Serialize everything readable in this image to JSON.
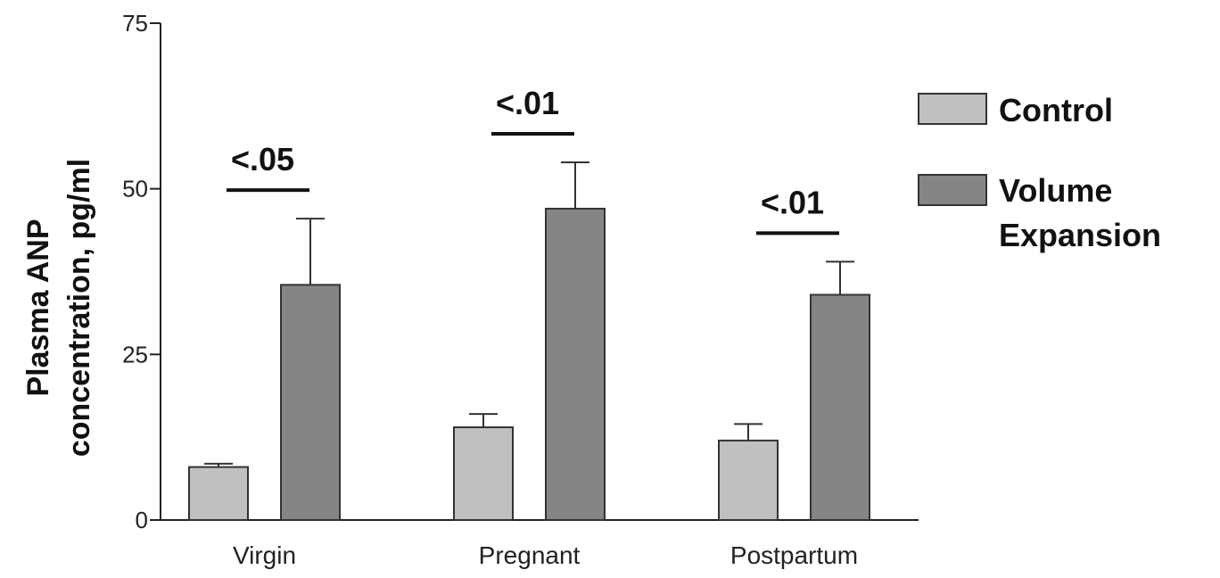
{
  "chart_data": {
    "type": "bar",
    "title": "",
    "ylabel_lines": [
      "Plasma ANP",
      "concentration, pg/ml"
    ],
    "xlabel": "",
    "categories": [
      "Virgin",
      "Pregnant",
      "Postpartum"
    ],
    "yticks": [
      "0",
      "25",
      "50",
      "75"
    ],
    "ylim": [
      0,
      75
    ],
    "grid": false,
    "legend_position": "right",
    "series": [
      {
        "name": "Control",
        "values": [
          8,
          14,
          12
        ],
        "errors": [
          0.5,
          2,
          2.5
        ],
        "color": "#c0c0c0"
      },
      {
        "name": "Volume",
        "name_line2": "Expansion",
        "values": [
          35.5,
          47,
          34
        ],
        "errors": [
          10,
          7,
          5
        ],
        "color": "#858585"
      }
    ],
    "significance": [
      "<.05",
      "<.01",
      "<.01"
    ]
  }
}
